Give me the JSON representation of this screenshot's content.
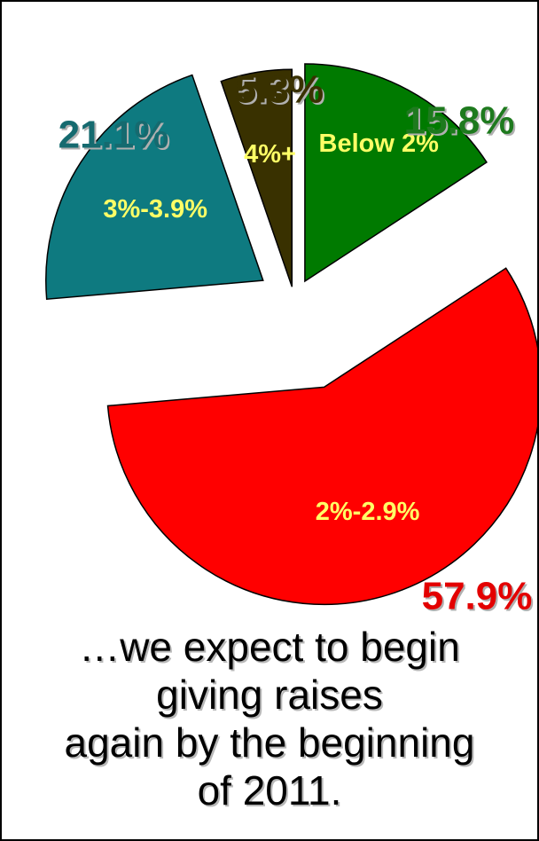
{
  "chart_data": {
    "type": "pie",
    "style": "exploded",
    "slices": [
      {
        "category": "Below 2%",
        "value": 15.8,
        "value_label": "15.8%",
        "color": "#007a00",
        "label_color": "#1e7a1e"
      },
      {
        "category": "2%-2.9%",
        "value": 57.9,
        "value_label": "57.9%",
        "color": "#ff0000",
        "label_color": "#e30000"
      },
      {
        "category": "3%-3.9%",
        "value": 21.1,
        "value_label": "21.1%",
        "color": "#0e7a80",
        "label_color": "#156a6f"
      },
      {
        "category": "4%+",
        "value": 5.3,
        "value_label": "5.3%",
        "color": "#393100",
        "label_color": "#393100"
      }
    ]
  },
  "caption": {
    "lines": [
      "…we expect to begin",
      "giving raises",
      "again by the beginning",
      "of 2011."
    ]
  }
}
